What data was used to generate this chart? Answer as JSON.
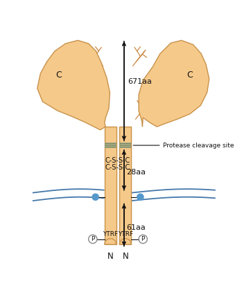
{
  "background_color": "#ffffff",
  "receptor_color": "#f5c98a",
  "receptor_edge_color": "#c8924a",
  "membrane_line_color": "#4477aa",
  "protease_dot_color": "#9aaa88",
  "palmitate_color": "#5599cc",
  "phospho_circle_color": "#888888",
  "arrow_color": "#111111",
  "text_color": "#111111",
  "glycan_color": "#cc8844",
  "label_671": "671aa",
  "label_28": "28aa",
  "label_61": "61aa",
  "label_CSSC1": "C-S-S-C",
  "label_CSSC2": "C-S-S-C",
  "label_YTRF_L": "YTRF",
  "label_YTRF_R": "YTRF",
  "label_C_L": "C",
  "label_C_R": "C",
  "label_N_L": "N",
  "label_N_R": "N",
  "label_P": "P",
  "label_protease": "Protease cleavage site",
  "figsize": [
    3.49,
    4.22
  ],
  "dpi": 100
}
